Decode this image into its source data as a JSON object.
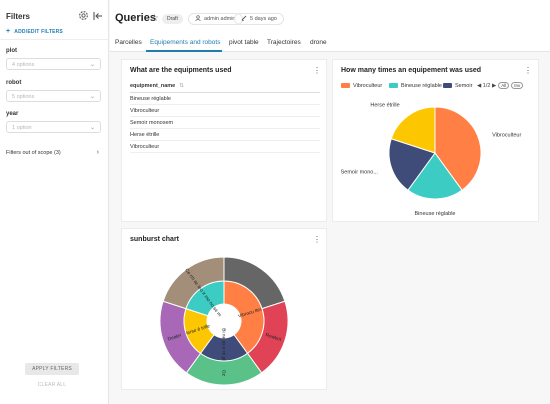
{
  "sidebar": {
    "title": "Filters",
    "add_filters": "ADD/EDIT FILTERS",
    "filters": [
      {
        "label": "plot",
        "placeholder": "4 options"
      },
      {
        "label": "robot",
        "placeholder": "5 options"
      },
      {
        "label": "year",
        "placeholder": "1 option"
      }
    ],
    "out_of_scope": "Filters out of scope (3)",
    "apply": "APPLY FILTERS",
    "clear": "CLEAR ALL"
  },
  "header": {
    "title": "Queries",
    "status": "Draft",
    "owner": "admin admin",
    "modified": "5 days ago"
  },
  "tabs": [
    "Parcelles",
    "Equipements and robots",
    "pivot table",
    "Trajectoires",
    "drone"
  ],
  "active_tab": 1,
  "table_card": {
    "title": "What are the equipments used",
    "column": "equipment_name",
    "rows": [
      "Bineuse réglable",
      "Vibroculteur",
      "Semoir monosem",
      "Herse étrille",
      "Vibroculteur"
    ]
  },
  "pie_card": {
    "title": "How many times an equipement was used",
    "legend_page": "1/2",
    "legend_all": "All",
    "legend_invert": "Inv"
  },
  "sunburst_card": {
    "title": "sunburst chart"
  },
  "colors": {
    "accent": "#1f7db0",
    "orange": "#ff7f44",
    "teal": "#3cccc3",
    "navy": "#3f4b78",
    "yellow": "#fcc700",
    "red": "#e04355",
    "green": "#5ac189",
    "purple": "#a868b7",
    "gray": "#666666",
    "taupe": "#a38f79"
  },
  "chart_data": [
    {
      "type": "pie",
      "series_labels": [
        "Vibroculteur",
        "Bineuse réglable",
        "Semoir monosem",
        "Herse étrille"
      ],
      "legend_labels": [
        "Vibroculteur",
        "Bineuse réglable",
        "Semoir"
      ],
      "slice_labels": [
        "Vibroculteur",
        "Bineuse réglable",
        "Semoir mono...",
        "Herse étrille"
      ],
      "values": [
        2,
        1,
        1,
        1
      ],
      "colors": [
        "#ff7f44",
        "#3cccc3",
        "#3f4b78",
        "#fcc700"
      ]
    },
    {
      "type": "sunburst",
      "inner": [
        {
          "label": "Vibrocu lteur",
          "value": 2,
          "color": "#ff7f44"
        },
        {
          "label": "Bi ne us e ré gla ble",
          "value": 1,
          "color": "#3f4b78"
        },
        {
          "label": "Herse é trille",
          "value": 1,
          "color": "#fcc700"
        },
        {
          "label": "Se mo ir mo no se m",
          "value": 1,
          "color": "#3cccc3"
        }
      ],
      "outer": [
        {
          "label": "",
          "value": 1,
          "color": "#666666"
        },
        {
          "label": "Rowbot",
          "value": 1,
          "color": "#e04355"
        },
        {
          "label": "Oz",
          "value": 1,
          "color": "#5ac189"
        },
        {
          "label": "Dealer",
          "value": 1,
          "color": "#a868b7"
        },
        {
          "label": "Ce rm ac le",
          "value": 1,
          "color": "#a38f79"
        }
      ]
    }
  ]
}
